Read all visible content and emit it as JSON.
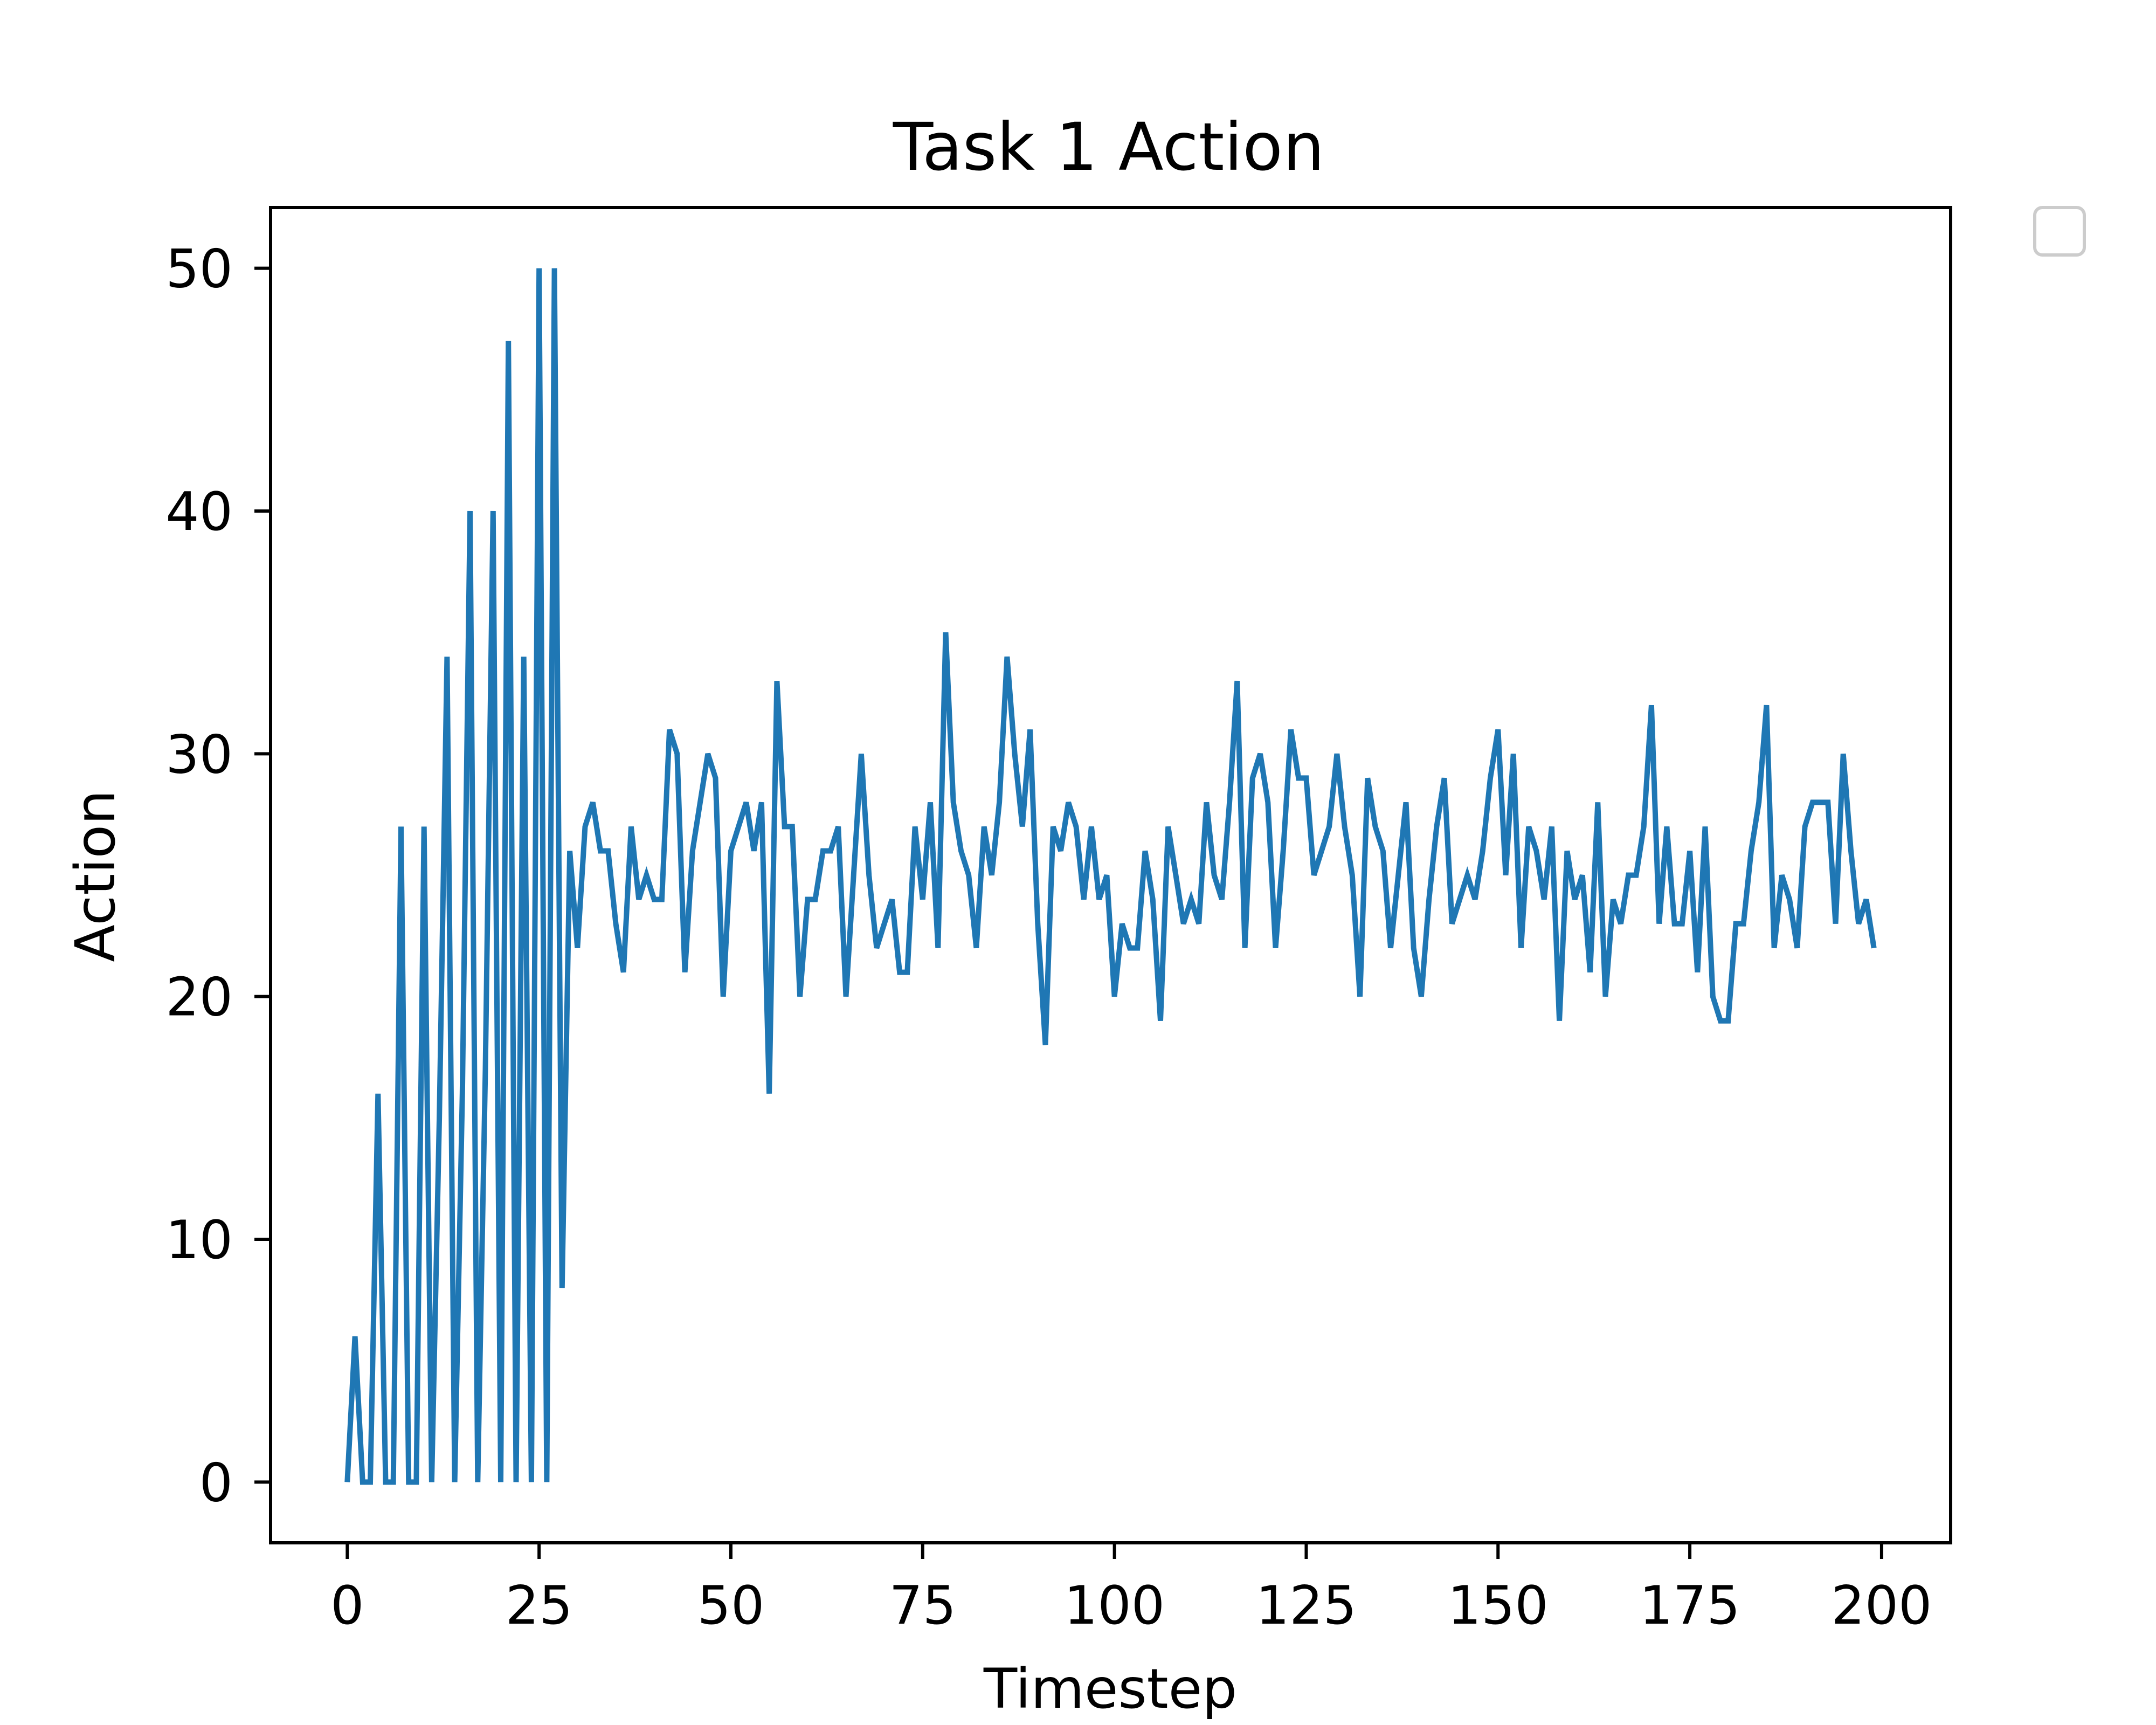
{
  "chart_data": {
    "type": "line",
    "title": "Task 1 Action",
    "xlabel": "Timestep",
    "ylabel": "Action",
    "xlim": [
      -10,
      209
    ],
    "ylim": [
      -2.5,
      52.5
    ],
    "x_ticks": [
      0,
      25,
      50,
      75,
      100,
      125,
      150,
      175,
      200
    ],
    "y_ticks": [
      0,
      10,
      20,
      30,
      40,
      50
    ],
    "grid": false,
    "legend": "empty legend box at top-right, outside the axes",
    "series_color": "#1f77b4",
    "series": [
      {
        "x_start": 0,
        "x_step": 1,
        "values": [
          0,
          6,
          0,
          0,
          16,
          0,
          0,
          27,
          0,
          0,
          27,
          0,
          15,
          34,
          0,
          16,
          40,
          0,
          17,
          40,
          0,
          47,
          0,
          34,
          0,
          50,
          0,
          50,
          8,
          26,
          22,
          27,
          28,
          26,
          26,
          23,
          21,
          27,
          24,
          25,
          24,
          24,
          31,
          30,
          21,
          26,
          28,
          30,
          29,
          20,
          26,
          27,
          28,
          26,
          28,
          16,
          33,
          27,
          27,
          20,
          24,
          24,
          26,
          26,
          27,
          20,
          25,
          30,
          25,
          22,
          23,
          24,
          21,
          21,
          27,
          24,
          28,
          22,
          35,
          28,
          26,
          25,
          22,
          27,
          25,
          28,
          34,
          30,
          27,
          31,
          23,
          18,
          27,
          26,
          28,
          27,
          24,
          27,
          24,
          25,
          20,
          23,
          22,
          22,
          26,
          24,
          19,
          27,
          25,
          23,
          24,
          23,
          28,
          25,
          24,
          28,
          33,
          22,
          29,
          30,
          28,
          22,
          26,
          31,
          29,
          29,
          25,
          26,
          27,
          30,
          27,
          25,
          20,
          29,
          27,
          26,
          22,
          25,
          28,
          22,
          20,
          24,
          27,
          29,
          23,
          24,
          25,
          24,
          26,
          29,
          31,
          25,
          30,
          22,
          27,
          26,
          24,
          27,
          19,
          26,
          24,
          25,
          21,
          28,
          20,
          24,
          23,
          25,
          25,
          27,
          32,
          23,
          27,
          23,
          23,
          26,
          21,
          27,
          20,
          19,
          19,
          23,
          23,
          26,
          28,
          32,
          22,
          25,
          24,
          22,
          27,
          28,
          28,
          28,
          23,
          30,
          26,
          23,
          24,
          22
        ]
      }
    ]
  }
}
